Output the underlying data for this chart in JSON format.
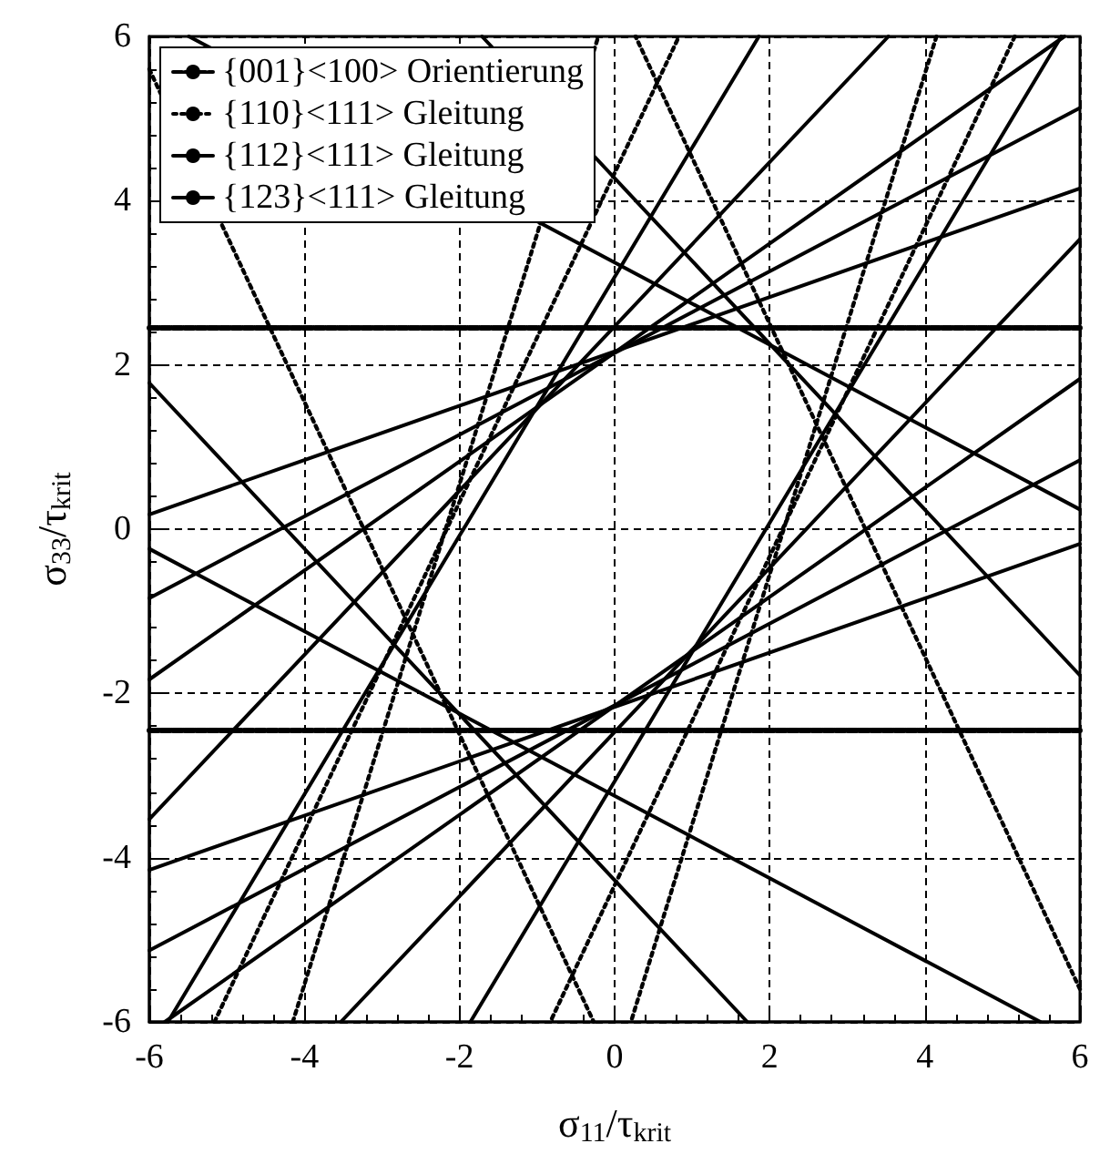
{
  "chart_data": {
    "type": "line",
    "xlabel": "σ$_{11}$/τ$_{krit}$",
    "ylabel": "σ$_{33}$/τ$_{krit}$",
    "xlim": [
      -6,
      6
    ],
    "xticks": [
      -6,
      -4,
      -2,
      0,
      2,
      4,
      6
    ],
    "ylim": [
      -6,
      6
    ],
    "yticks": [
      -6,
      -4,
      -2,
      0,
      2,
      4,
      6
    ],
    "grid": true,
    "legend": "top left",
    "marker": "none",
    "series": [
      {
        "name": "{001}<100> Orientierung",
        "color": "#000000",
        "line_style": "dashed",
        "x": [
          -6,
          6
        ],
        "values": [
          2.45,
          2.45
        ]
      },
      {
        "color": "#000000",
        "line_style": "dashed",
        "x": [
          -6,
          6
        ],
        "values": [
          -2.45,
          -2.45
        ]
      },
      {
        "name": "{110}<111> Gleitung",
        "color": "#000000",
        "line_style": "dotted",
        "x": [
          -5.16,
          0.83
        ],
        "values": [
          -6,
          6
        ]
      },
      {
        "color": "#000000",
        "line_style": "dotted",
        "x": [
          5.16,
          -0.83
        ],
        "values": [
          6,
          -6
        ]
      },
      {
        "color": "#000000",
        "line_style": "dotted",
        "x": [
          -4.15,
          -0.21
        ],
        "values": [
          -6,
          6
        ]
      },
      {
        "color": "#000000",
        "line_style": "dotted",
        "x": [
          4.15,
          0.21
        ],
        "values": [
          6,
          -6
        ]
      },
      {
        "color": "#000000",
        "line_style": "dotted",
        "x": [
          -6,
          -0.27
        ],
        "values": [
          5.6,
          -6
        ]
      },
      {
        "color": "#000000",
        "line_style": "dotted",
        "x": [
          6,
          0.27
        ],
        "values": [
          -5.6,
          6
        ]
      },
      {
        "name": "{112}<111> Gleitung",
        "color": "#000000",
        "line_style": "solid",
        "x": [
          -6,
          1.71
        ],
        "values": [
          1.78,
          -6
        ]
      },
      {
        "color": "#000000",
        "line_style": "solid",
        "x": [
          6,
          -1.71
        ],
        "values": [
          -1.78,
          6
        ]
      },
      {
        "color": "#000000",
        "line_style": "solid",
        "x": [
          -6,
          5.49
        ],
        "values": [
          -0.24,
          -6
        ]
      },
      {
        "color": "#000000",
        "line_style": "solid",
        "x": [
          6,
          -5.49
        ],
        "values": [
          0.24,
          6
        ]
      },
      {
        "name": "{123}<111> Gleitung",
        "color": "#000000",
        "line_style": "solid",
        "x": [
          -6,
          6
        ],
        "values": [
          0.18,
          4.15
        ]
      },
      {
        "color": "#000000",
        "line_style": "solid",
        "x": [
          6,
          -6
        ],
        "values": [
          -0.18,
          -4.15
        ]
      },
      {
        "color": "#000000",
        "line_style": "solid",
        "x": [
          -6,
          6
        ],
        "values": [
          -0.84,
          5.13
        ]
      },
      {
        "color": "#000000",
        "line_style": "solid",
        "x": [
          6,
          -6
        ],
        "values": [
          0.84,
          -5.13
        ]
      },
      {
        "color": "#000000",
        "line_style": "solid",
        "x": [
          -5.8,
          6
        ],
        "values": [
          -6,
          1.83
        ]
      },
      {
        "color": "#000000",
        "line_style": "solid",
        "x": [
          5.8,
          -6
        ],
        "values": [
          6,
          -1.83
        ]
      },
      {
        "color": "#000000",
        "line_style": "solid",
        "x": [
          -3.53,
          6
        ],
        "values": [
          -6,
          3.53
        ]
      },
      {
        "color": "#000000",
        "line_style": "solid",
        "x": [
          3.53,
          -6
        ],
        "values": [
          6,
          -3.53
        ]
      },
      {
        "color": "#000000",
        "line_style": "solid",
        "x": [
          -1.86,
          5.76
        ],
        "values": [
          -6,
          6
        ]
      },
      {
        "color": "#000000",
        "line_style": "solid",
        "x": [
          1.86,
          -5.76
        ],
        "values": [
          6,
          -6
        ]
      }
    ]
  }
}
